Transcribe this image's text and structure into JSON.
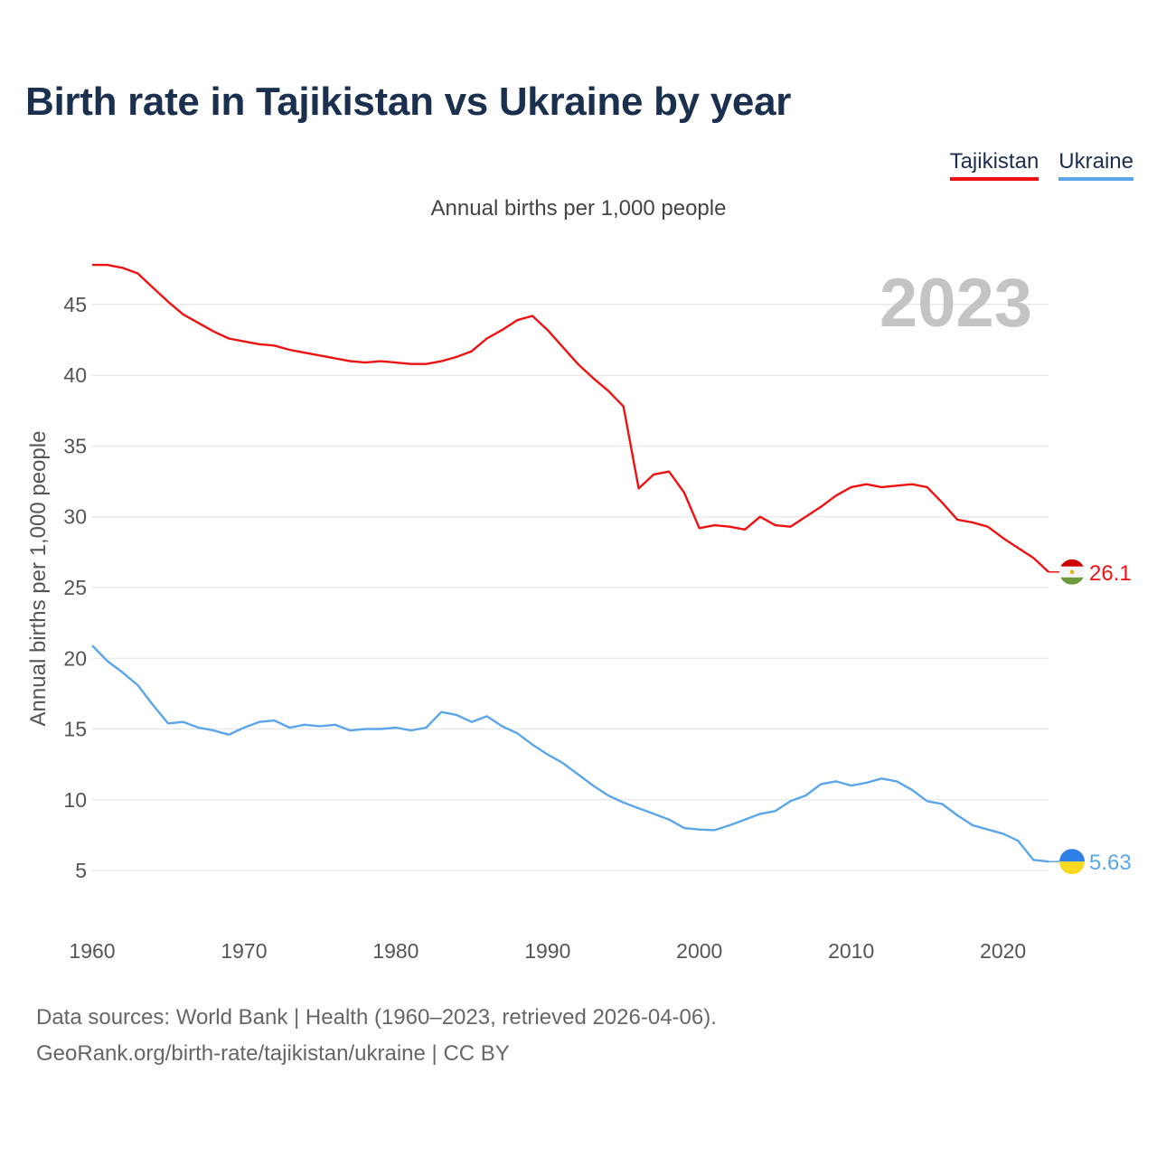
{
  "title": "Birth rate in Tajikistan vs Ukraine by year",
  "subtitle": "Annual births per 1,000 people",
  "watermark_year": "2023",
  "legend": {
    "tajikistan": "Tajikistan",
    "ukraine": "Ukraine"
  },
  "source": {
    "line1": "Data sources: World Bank | Health (1960–2023, retrieved 2026-04-06).",
    "line2": "GeoRank.org/birth-rate/tajikistan/ukraine | CC BY"
  },
  "colors": {
    "tajikistan": "#ee1111",
    "ukraine": "#5aa6e8",
    "grid": "#e6e6e6"
  },
  "chart_data": {
    "type": "line",
    "title": "Birth rate in Tajikistan vs Ukraine by year",
    "xlabel": "",
    "ylabel": "Annual births per 1,000 people",
    "xlim": [
      1960,
      2023
    ],
    "ylim": [
      2,
      48
    ],
    "yticks": [
      5,
      10,
      15,
      20,
      25,
      30,
      35,
      40,
      45
    ],
    "xticks": [
      1960,
      1970,
      1980,
      1990,
      2000,
      2010,
      2020
    ],
    "grid": true,
    "legend_position": "top-right",
    "x": [
      1960,
      1961,
      1962,
      1963,
      1964,
      1965,
      1966,
      1967,
      1968,
      1969,
      1970,
      1971,
      1972,
      1973,
      1974,
      1975,
      1976,
      1977,
      1978,
      1979,
      1980,
      1981,
      1982,
      1983,
      1984,
      1985,
      1986,
      1987,
      1988,
      1989,
      1990,
      1991,
      1992,
      1993,
      1994,
      1995,
      1996,
      1997,
      1998,
      1999,
      2000,
      2001,
      2002,
      2003,
      2004,
      2005,
      2006,
      2007,
      2008,
      2009,
      2010,
      2011,
      2012,
      2013,
      2014,
      2015,
      2016,
      2017,
      2018,
      2019,
      2020,
      2021,
      2022,
      2023
    ],
    "series": [
      {
        "name": "Tajikistan",
        "end_label": "26.1",
        "values": [
          47.8,
          47.8,
          47.6,
          47.2,
          46.2,
          45.2,
          44.3,
          43.7,
          43.1,
          42.6,
          42.4,
          42.2,
          42.1,
          41.8,
          41.6,
          41.4,
          41.2,
          41.0,
          40.9,
          41.0,
          40.9,
          40.8,
          40.8,
          41.0,
          41.3,
          41.7,
          42.6,
          43.2,
          43.9,
          44.2,
          43.2,
          42.0,
          40.8,
          39.8,
          38.9,
          37.8,
          32.0,
          33.0,
          33.2,
          31.7,
          29.2,
          29.4,
          29.3,
          29.1,
          30.0,
          29.4,
          29.3,
          30.0,
          30.7,
          31.5,
          32.1,
          32.3,
          32.1,
          32.2,
          32.3,
          32.1,
          31.0,
          29.8,
          29.6,
          29.3,
          28.5,
          27.8,
          27.1,
          26.1
        ]
      },
      {
        "name": "Ukraine",
        "end_label": "5.63",
        "values": [
          20.9,
          19.8,
          19.0,
          18.1,
          16.7,
          15.4,
          15.5,
          15.1,
          14.9,
          14.6,
          15.1,
          15.5,
          15.6,
          15.1,
          15.3,
          15.2,
          15.3,
          14.9,
          15.0,
          15.0,
          15.1,
          14.9,
          15.1,
          16.2,
          16.0,
          15.5,
          15.9,
          15.2,
          14.7,
          13.9,
          13.2,
          12.6,
          11.8,
          11.0,
          10.3,
          9.8,
          9.4,
          9.0,
          8.6,
          8.0,
          7.9,
          7.85,
          8.2,
          8.6,
          9.0,
          9.2,
          9.9,
          10.3,
          11.1,
          11.3,
          11.0,
          11.2,
          11.5,
          11.3,
          10.7,
          9.9,
          9.7,
          8.9,
          8.2,
          7.9,
          7.6,
          7.1,
          5.75,
          5.63
        ]
      }
    ]
  }
}
